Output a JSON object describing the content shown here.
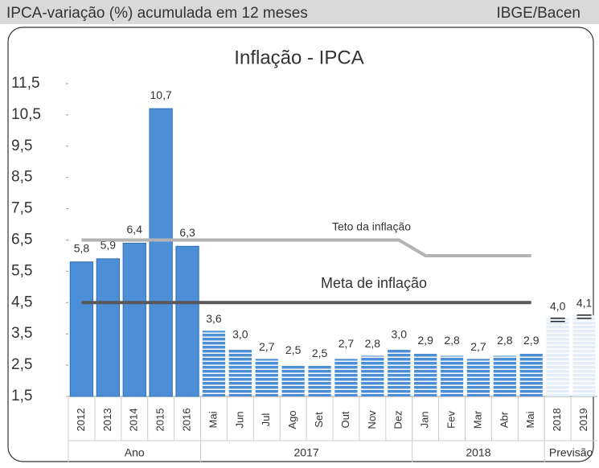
{
  "chart_data": {
    "type": "bar",
    "header": "IPCA-variação (%) acumulada em 12 meses",
    "source": "IBGE/Bacen",
    "title": "Inflação - IPCA",
    "categories": [
      "2012",
      "2013",
      "2014",
      "2015",
      "2016",
      "Mai",
      "Jun",
      "Jul",
      "Ago",
      "Set",
      "Out",
      "Nov",
      "Dez",
      "Jan",
      "Fev",
      "Mar",
      "Abr",
      "Mai",
      "2018",
      "2019"
    ],
    "groups": [
      "Ano",
      "Ano",
      "Ano",
      "Ano",
      "Ano",
      "2017",
      "2017",
      "2017",
      "2017",
      "2017",
      "2017",
      "2017",
      "2017",
      "2018",
      "2018",
      "2018",
      "2018",
      "2018",
      "Previsão",
      "Previsão"
    ],
    "values": [
      5.8,
      5.9,
      6.4,
      10.7,
      6.3,
      3.6,
      3.0,
      2.7,
      2.5,
      2.5,
      2.7,
      2.8,
      3.0,
      2.9,
      2.8,
      2.7,
      2.8,
      2.9,
      4.0,
      4.1
    ],
    "value_labels": [
      "5,8",
      "5,9",
      "6,4",
      "10,7",
      "6,3",
      "3,6",
      "3,0",
      "2,7",
      "2,5",
      "2,5",
      "2,7",
      "2,8",
      "3,0",
      "2,9",
      "2,8",
      "2,7",
      "2,8",
      "2,9",
      "4,0",
      "4,1"
    ],
    "bar_styles": [
      "solid",
      "solid",
      "solid",
      "solid",
      "solid",
      "striped",
      "striped",
      "striped",
      "striped",
      "striped",
      "striped",
      "striped",
      "striped",
      "striped",
      "striped",
      "striped",
      "striped",
      "striped",
      "forecast",
      "forecast"
    ],
    "color": "#4d8fd6",
    "series": [
      {
        "name": "Teto da inflação",
        "color": "#b3b3b3",
        "values": [
          6.5,
          6.5,
          6.5,
          6.5,
          6.5,
          6.5,
          6.5,
          6.5,
          6.5,
          6.5,
          6.5,
          6.5,
          6.5,
          6.0,
          6.0,
          6.0,
          6.0,
          6.0,
          null,
          null
        ]
      },
      {
        "name": "Meta de inflação",
        "color": "#595959",
        "values": [
          4.5,
          4.5,
          4.5,
          4.5,
          4.5,
          4.5,
          4.5,
          4.5,
          4.5,
          4.5,
          4.5,
          4.5,
          4.5,
          4.5,
          4.5,
          4.5,
          4.5,
          4.5,
          null,
          null
        ]
      }
    ],
    "ylim": [
      1.5,
      11.5
    ],
    "yticks": [
      {
        "value": 1.5,
        "label": "1,5"
      },
      {
        "value": 2.5,
        "label": "2,5"
      },
      {
        "value": 3.5,
        "label": "3,5"
      },
      {
        "value": 4.5,
        "label": "4,5"
      },
      {
        "value": 5.5,
        "label": "5,5"
      },
      {
        "value": 6.5,
        "label": "6,5"
      },
      {
        "value": 7.5,
        "label": "7,5"
      },
      {
        "value": 8.5,
        "label": "8,5"
      },
      {
        "value": 9.5,
        "label": "9,5"
      },
      {
        "value": 10.5,
        "label": "10,5"
      },
      {
        "value": 11.5,
        "label": "11,5"
      }
    ],
    "grid": false
  }
}
